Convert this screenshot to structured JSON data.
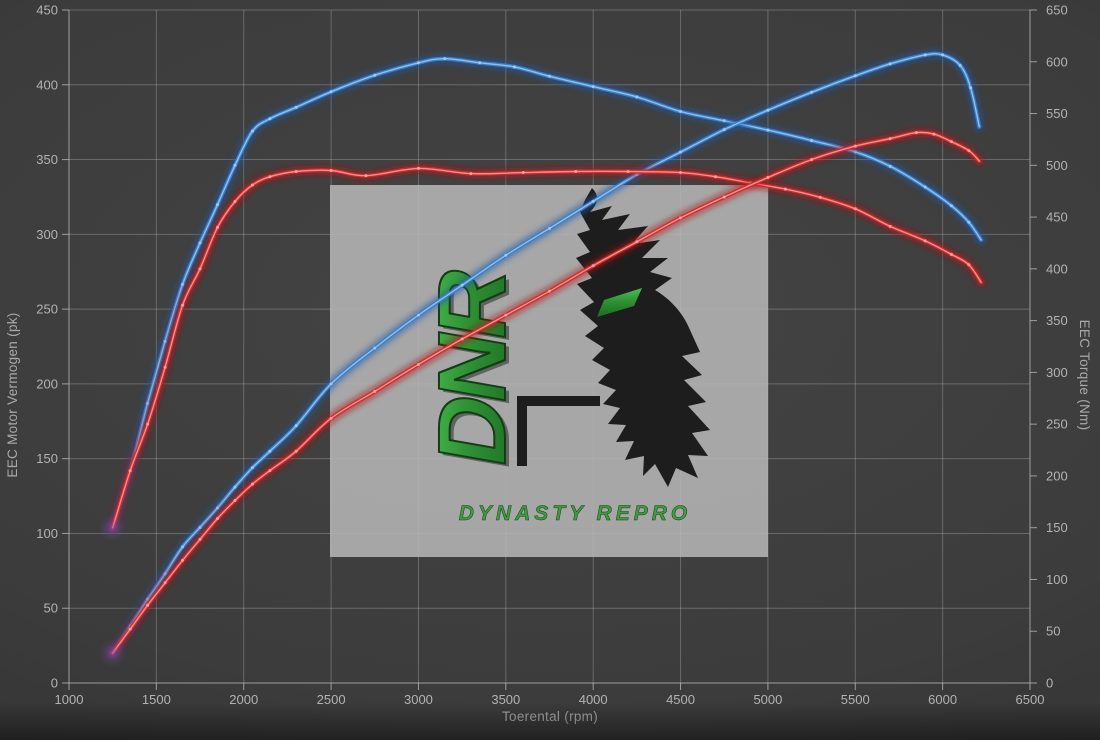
{
  "chart_data": {
    "type": "line",
    "title": "",
    "xlabel": "Toerental (rpm)",
    "ylabel_left": "EEC Motor Vermogen (pk)",
    "ylabel_right": "EEC Torque (Nm)",
    "x_range": [
      1000,
      6500
    ],
    "x_ticks": [
      1000,
      1500,
      2000,
      2500,
      3000,
      3500,
      4000,
      4500,
      5000,
      5500,
      6000,
      6500
    ],
    "y_left_range": [
      0,
      450
    ],
    "y_left_ticks": [
      0,
      50,
      100,
      150,
      200,
      250,
      300,
      350,
      400,
      450
    ],
    "y_right_range": [
      0,
      650
    ],
    "y_right_ticks": [
      0,
      50,
      100,
      150,
      200,
      250,
      300,
      350,
      400,
      450,
      500,
      550,
      600,
      650
    ],
    "grid": true,
    "legend": "none",
    "series": [
      {
        "name": "blue-torque",
        "axis": "right",
        "units": "Nm",
        "color": "#3c7fc8",
        "points": [
          [
            1250,
            150
          ],
          [
            1350,
            205
          ],
          [
            1450,
            270
          ],
          [
            1550,
            330
          ],
          [
            1650,
            385
          ],
          [
            1750,
            425
          ],
          [
            1850,
            462
          ],
          [
            1950,
            500
          ],
          [
            2050,
            533
          ],
          [
            2150,
            545
          ],
          [
            2300,
            556
          ],
          [
            2500,
            571
          ],
          [
            2750,
            587
          ],
          [
            3000,
            599
          ],
          [
            3150,
            603
          ],
          [
            3350,
            599
          ],
          [
            3550,
            595
          ],
          [
            3750,
            586
          ],
          [
            4000,
            576
          ],
          [
            4250,
            566
          ],
          [
            4500,
            552
          ],
          [
            4750,
            543
          ],
          [
            5000,
            534
          ],
          [
            5250,
            524
          ],
          [
            5500,
            513
          ],
          [
            5700,
            499
          ],
          [
            5900,
            479
          ],
          [
            6050,
            461
          ],
          [
            6150,
            445
          ],
          [
            6220,
            428
          ]
        ]
      },
      {
        "name": "blue-power",
        "axis": "left",
        "units": "pk",
        "color": "#3c7fc8",
        "points": [
          [
            1250,
            20
          ],
          [
            1350,
            38
          ],
          [
            1450,
            56
          ],
          [
            1550,
            73
          ],
          [
            1650,
            91
          ],
          [
            1750,
            104
          ],
          [
            1850,
            117
          ],
          [
            1950,
            131
          ],
          [
            2050,
            144
          ],
          [
            2150,
            155
          ],
          [
            2300,
            172
          ],
          [
            2500,
            200
          ],
          [
            2750,
            224
          ],
          [
            3000,
            246
          ],
          [
            3250,
            266
          ],
          [
            3500,
            286
          ],
          [
            3750,
            304
          ],
          [
            4000,
            322
          ],
          [
            4250,
            340
          ],
          [
            4500,
            355
          ],
          [
            4750,
            370
          ],
          [
            5000,
            383
          ],
          [
            5250,
            395
          ],
          [
            5500,
            406
          ],
          [
            5700,
            414
          ],
          [
            5900,
            420
          ],
          [
            6000,
            420
          ],
          [
            6100,
            413
          ],
          [
            6160,
            398
          ],
          [
            6210,
            372
          ]
        ]
      },
      {
        "name": "red-torque",
        "axis": "right",
        "units": "Nm",
        "color": "#cf2c2c",
        "points": [
          [
            1250,
            150
          ],
          [
            1350,
            205
          ],
          [
            1450,
            250
          ],
          [
            1550,
            305
          ],
          [
            1650,
            365
          ],
          [
            1750,
            400
          ],
          [
            1850,
            440
          ],
          [
            1950,
            465
          ],
          [
            2050,
            481
          ],
          [
            2150,
            489
          ],
          [
            2300,
            494
          ],
          [
            2500,
            495
          ],
          [
            2700,
            490
          ],
          [
            3000,
            497
          ],
          [
            3300,
            492
          ],
          [
            3600,
            493
          ],
          [
            3900,
            494
          ],
          [
            4200,
            494
          ],
          [
            4500,
            493
          ],
          [
            4700,
            489
          ],
          [
            4900,
            483
          ],
          [
            5100,
            477
          ],
          [
            5300,
            469
          ],
          [
            5500,
            458
          ],
          [
            5700,
            441
          ],
          [
            5900,
            427
          ],
          [
            6050,
            414
          ],
          [
            6150,
            404
          ],
          [
            6220,
            387
          ]
        ]
      },
      {
        "name": "red-power",
        "axis": "left",
        "units": "pk",
        "color": "#cf2c2c",
        "points": [
          [
            1250,
            20
          ],
          [
            1350,
            36
          ],
          [
            1450,
            52
          ],
          [
            1550,
            67
          ],
          [
            1650,
            82
          ],
          [
            1750,
            96
          ],
          [
            1850,
            110
          ],
          [
            1950,
            122
          ],
          [
            2050,
            133
          ],
          [
            2150,
            142
          ],
          [
            2300,
            155
          ],
          [
            2500,
            177
          ],
          [
            2750,
            195
          ],
          [
            3000,
            213
          ],
          [
            3250,
            230
          ],
          [
            3500,
            246
          ],
          [
            3750,
            262
          ],
          [
            4000,
            279
          ],
          [
            4250,
            295
          ],
          [
            4500,
            311
          ],
          [
            4750,
            325
          ],
          [
            5000,
            338
          ],
          [
            5250,
            350
          ],
          [
            5500,
            359
          ],
          [
            5700,
            364
          ],
          [
            5850,
            368
          ],
          [
            5950,
            367
          ],
          [
            6050,
            362
          ],
          [
            6150,
            356
          ],
          [
            6210,
            349
          ]
        ]
      }
    ]
  },
  "watermark": {
    "monogram": "DNR",
    "brand": "DYNASTY REPRO"
  },
  "colors": {
    "background": "#3c3c3c",
    "gridline": "#c8c8c8",
    "tick_text": "#b3b3b3",
    "blue_curve": "#3c7fc8",
    "blue_core": "#9bcbf5",
    "blue_glow": "#1f5aa8",
    "red_curve": "#cf2c2c",
    "red_core": "#ffa0a0",
    "red_glow": "#b01818",
    "overlap_glow": "#7a4fc0",
    "watermark_box": "#b5b5b5",
    "logo_green": "#2f9235",
    "logo_dark": "#1d1d1d"
  }
}
